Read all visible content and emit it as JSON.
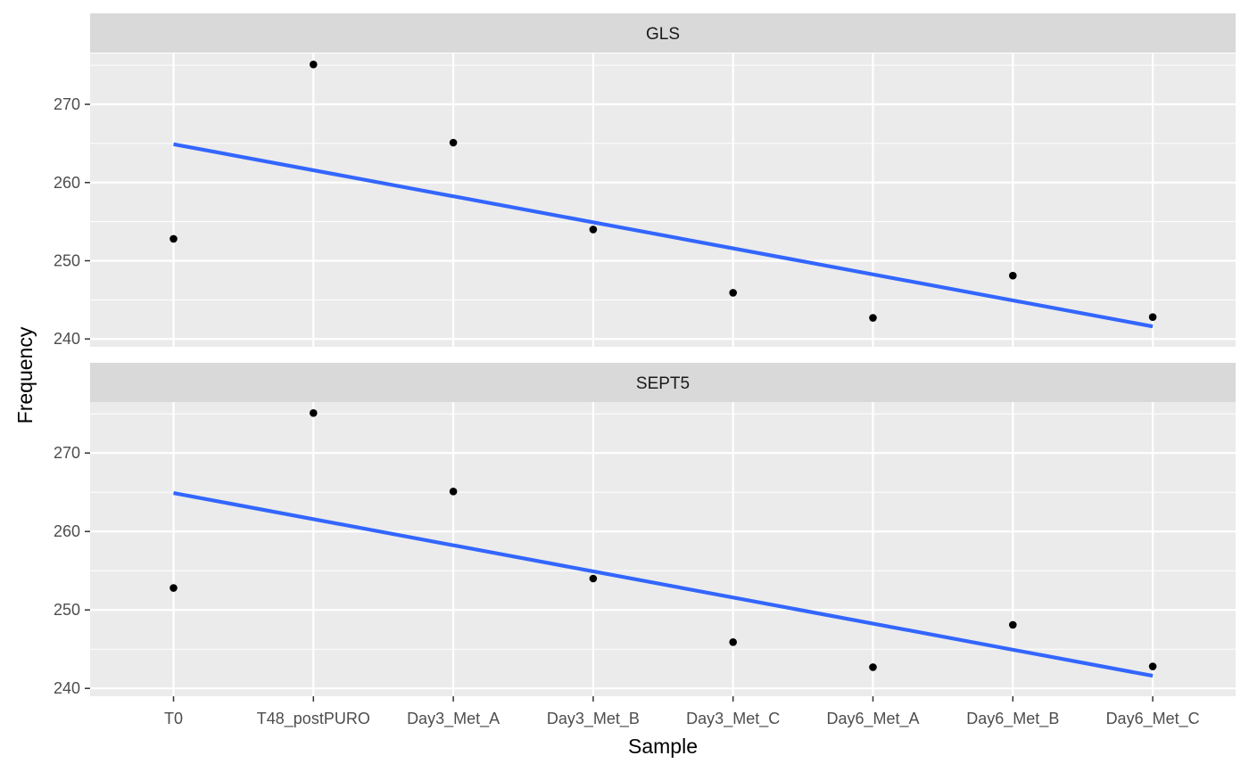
{
  "chart_data": {
    "type": "scatter",
    "xlabel": "Sample",
    "ylabel": "Frequency",
    "categories": [
      "T0",
      "T48_postPURO",
      "Day3_Met_A",
      "Day3_Met_B",
      "Day3_Met_C",
      "Day6_Met_A",
      "Day6_Met_B",
      "Day6_Met_C"
    ],
    "ylim": [
      239,
      276.5
    ],
    "y_ticks": [
      240,
      250,
      260,
      270
    ],
    "grid": true,
    "legend": "none",
    "colors": {
      "panel_bg": "#ebebeb",
      "strip_bg": "#d9d9d9",
      "grid": "#ffffff",
      "point": "#000000",
      "fit_line": "#3366ff"
    },
    "panels": [
      {
        "label": "GLS",
        "points": [
          252.8,
          275.1,
          265.1,
          254.0,
          245.9,
          242.7,
          248.1,
          242.8
        ],
        "fit_line": {
          "start": 264.9,
          "end": 241.6
        }
      },
      {
        "label": "SEPT5",
        "points": [
          252.8,
          275.1,
          265.1,
          254.0,
          245.9,
          242.7,
          248.1,
          242.8
        ],
        "fit_line": {
          "start": 264.9,
          "end": 241.6
        }
      }
    ]
  }
}
